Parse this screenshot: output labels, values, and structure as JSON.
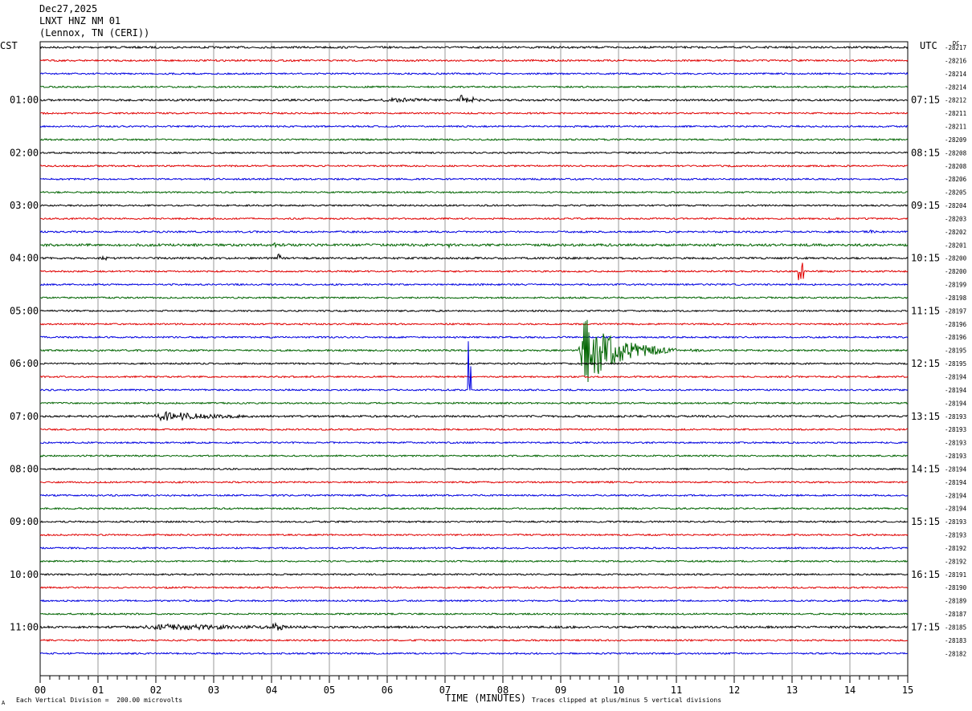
{
  "header": {
    "date": "Dec27,2025",
    "station": "LNXT HNZ NM 01",
    "location": "(Lennox, TN (CERI))"
  },
  "left_zone_label": "CST",
  "right_zone_label": "UTC",
  "right_top_label": "DC",
  "footer": {
    "left_glyph": "A",
    "scale_note": "Each Vertical Division =  200.00 microvolts",
    "clip_note": "Traces clipped at plus/minus 5 vertical divisions"
  },
  "chart_data": {
    "type": "line",
    "subtype": "helicorder",
    "xlabel": "TIME (MINUTES)",
    "x_ticks": [
      "00",
      "01",
      "02",
      "03",
      "04",
      "05",
      "06",
      "07",
      "08",
      "09",
      "10",
      "11",
      "12",
      "13",
      "14",
      "15"
    ],
    "xlim": [
      0,
      15
    ],
    "minutes_per_line": 15,
    "trace_colors": [
      "#000000",
      "#e00000",
      "#0000e0",
      "#006400"
    ],
    "left_time_labels": [
      "01:00",
      "02:00",
      "03:00",
      "04:00",
      "05:00",
      "06:00",
      "07:00",
      "08:00",
      "09:00",
      "10:00",
      "11:00"
    ],
    "right_time_labels": [
      "07:15",
      "08:15",
      "09:15",
      "10:15",
      "11:15",
      "12:15",
      "13:15",
      "14:15",
      "15:15",
      "16:15",
      "17:15"
    ],
    "dc_offsets": [
      "-28217",
      "-28216",
      "-28214",
      "-28214",
      "-28212",
      "-28211",
      "-28211",
      "-28209",
      "-28208",
      "-28208",
      "-28206",
      "-28205",
      "-28204",
      "-28203",
      "-28202",
      "-28201",
      "-28200",
      "-28200",
      "-28199",
      "-28198",
      "-28197",
      "-28196",
      "-28196",
      "-28195",
      "-28195",
      "-28194",
      "-28194",
      "-28194",
      "-28193",
      "-28193",
      "-28193",
      "-28193",
      "-28194",
      "-28194",
      "-28194",
      "-28194",
      "-28193",
      "-28193",
      "-28192",
      "-28192",
      "-28191",
      "-28190",
      "-28189",
      "-28187",
      "-28185",
      "-28183",
      "-28182"
    ],
    "noise_amplitude": [
      1.2,
      1.1,
      1.0,
      1.0,
      1.2,
      1.0,
      1.0,
      1.0,
      1.0,
      1.0,
      1.0,
      1.0,
      1.0,
      1.0,
      1.1,
      1.5,
      1.2,
      1.0,
      1.0,
      1.0,
      1.0,
      1.0,
      1.0,
      1.1,
      1.0,
      1.0,
      1.0,
      1.0,
      1.2,
      1.0,
      1.0,
      1.0,
      1.0,
      1.0,
      1.0,
      1.0,
      1.0,
      1.0,
      1.0,
      1.0,
      1.0,
      1.0,
      1.0,
      1.0,
      1.3,
      1.0,
      1.0
    ],
    "events": [
      {
        "line": 4,
        "start": 5.8,
        "end": 9.0,
        "amplitude": 4
      },
      {
        "line": 4,
        "start": 7.2,
        "end": 8.2,
        "amplitude": 8
      },
      {
        "line": 7,
        "start": 10.1,
        "end": 10.4,
        "amplitude": 3
      },
      {
        "line": 14,
        "start": 14.3,
        "end": 15.0,
        "amplitude": 3
      },
      {
        "line": 15,
        "start": 0.0,
        "end": 0.6,
        "amplitude": 3
      },
      {
        "line": 15,
        "start": 4.0,
        "end": 4.8,
        "amplitude": 4
      },
      {
        "line": 15,
        "start": 7.0,
        "end": 7.3,
        "amplitude": 6
      },
      {
        "line": 16,
        "start": 1.0,
        "end": 2.3,
        "amplitude": 3
      },
      {
        "line": 16,
        "start": 4.1,
        "end": 4.3,
        "amplitude": 8
      },
      {
        "line": 17,
        "start": 13.1,
        "end": 13.2,
        "amplitude": 12
      },
      {
        "line": 23,
        "start": 9.3,
        "end": 11.0,
        "amplitude": 55
      },
      {
        "line": 23,
        "start": 10.2,
        "end": 10.4,
        "amplitude": 6
      },
      {
        "line": 23,
        "start": 11.2,
        "end": 11.9,
        "amplitude": 3
      },
      {
        "line": 26,
        "start": 7.4,
        "end": 7.45,
        "amplitude": 66
      },
      {
        "line": 28,
        "start": 1.9,
        "end": 5.0,
        "amplitude": 8
      },
      {
        "line": 44,
        "start": 1.5,
        "end": 9.0,
        "amplitude": 5
      },
      {
        "line": 44,
        "start": 4.0,
        "end": 4.5,
        "amplitude": 9
      }
    ]
  }
}
